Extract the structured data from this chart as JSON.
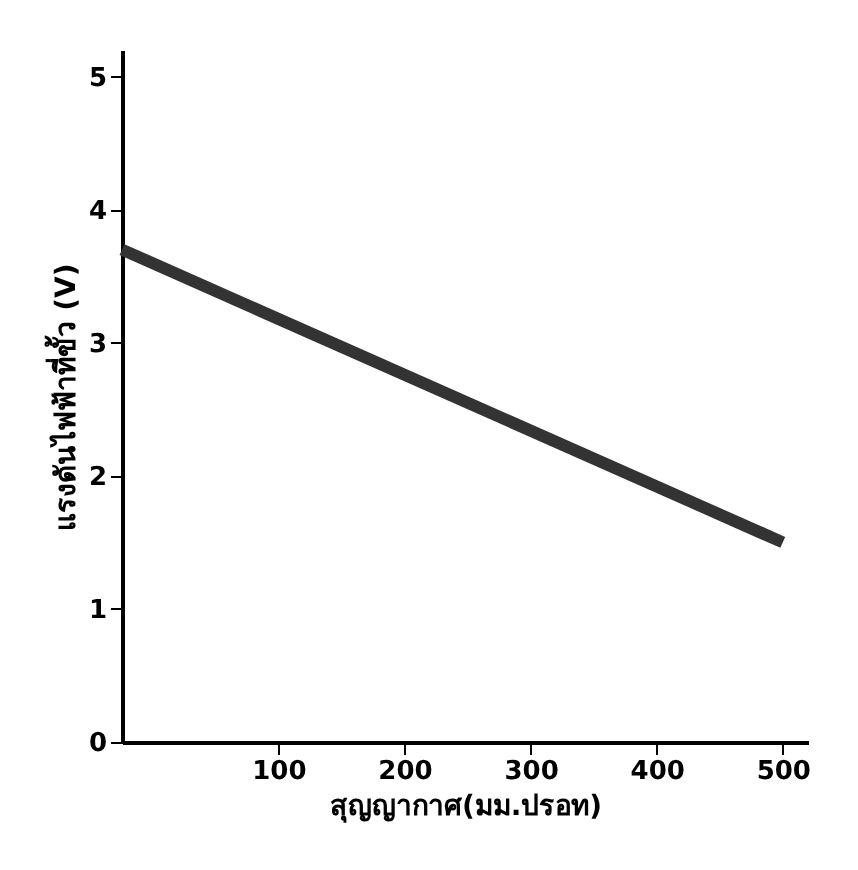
{
  "chart_data": {
    "type": "line",
    "xlabel": "สุญญากาศ(มม.ปรอท)",
    "ylabel": "แรงดันไฟฟ้าที่ขั้ว (V)",
    "x": [
      -24,
      500
    ],
    "series": [
      {
        "color": "#333333",
        "values": [
          3.7,
          1.5
        ]
      }
    ],
    "xlim": [
      -24,
      520
    ],
    "xticks": [
      100,
      200,
      300,
      400,
      500
    ],
    "ylim": [
      0,
      5.2
    ],
    "yticks": [
      0,
      1,
      2,
      3,
      4,
      5
    ],
    "grid": false,
    "legend": false
  }
}
